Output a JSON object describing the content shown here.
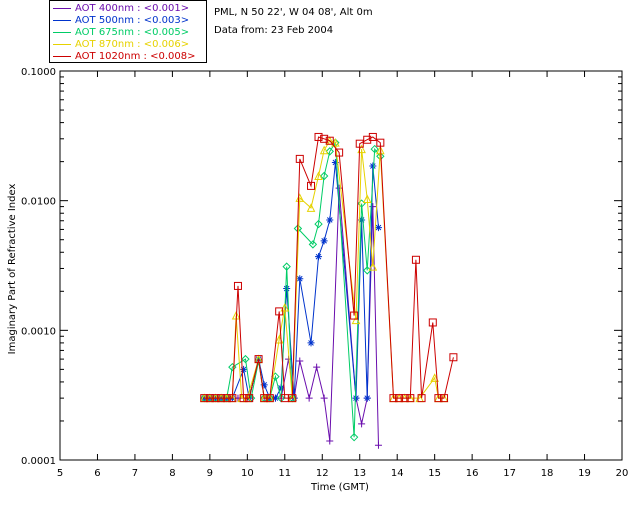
{
  "header": {
    "site": "PML, N 50 22', W 04 08', Alt 0m",
    "date": "Data from: 23 Feb 2004"
  },
  "legend": [
    {
      "label": "AOT  400nm : <0.001>",
      "color": "#6a0dad"
    },
    {
      "label": "AOT  500nm : <0.003>",
      "color": "#0033cc"
    },
    {
      "label": "AOT  675nm : <0.005>",
      "color": "#00cc66"
    },
    {
      "label": "AOT  870nm : <0.006>",
      "color": "#e6d200"
    },
    {
      "label": "AOT 1020nm : <0.008>",
      "color": "#cc0000"
    }
  ],
  "chart_data": {
    "type": "line",
    "xlabel": "Time (GMT)",
    "ylabel": "Imaginary Part of Refractive Index",
    "xlim": [
      5,
      20
    ],
    "ylim": [
      0.0001,
      0.1
    ],
    "yscale": "log",
    "xticks": [
      "5",
      "6",
      "7",
      "8",
      "9",
      "10",
      "11",
      "12",
      "13",
      "14",
      "15",
      "16",
      "17",
      "18",
      "19",
      "20"
    ],
    "yticks": [
      {
        "value": 0.0001,
        "label": "0.0001"
      },
      {
        "value": 0.001,
        "label": "0.0010"
      },
      {
        "value": 0.01,
        "label": "0.0100"
      },
      {
        "value": 0.1,
        "label": "0.1000"
      }
    ],
    "series": [
      {
        "name": "AOT 400nm",
        "color": "#6a0dad",
        "marker": "plus",
        "points": [
          [
            8.85,
            0.0003
          ],
          [
            9.0,
            0.0003
          ],
          [
            9.15,
            0.0003
          ],
          [
            9.3,
            0.0003
          ],
          [
            9.45,
            0.0003
          ],
          [
            9.6,
            0.0003
          ],
          [
            9.75,
            0.0003
          ],
          [
            9.9,
            0.0003
          ],
          [
            10.05,
            0.0003
          ],
          [
            10.3,
            0.0006
          ],
          [
            10.45,
            0.0003
          ],
          [
            10.6,
            0.0003
          ],
          [
            10.75,
            0.0003
          ],
          [
            10.9,
            0.0003
          ],
          [
            11.1,
            0.0006
          ],
          [
            11.25,
            0.0003
          ],
          [
            11.4,
            0.00058
          ],
          [
            11.65,
            0.0003
          ],
          [
            11.85,
            0.00052
          ],
          [
            12.05,
            0.0003
          ],
          [
            12.2,
            0.00014
          ],
          [
            12.45,
            0.0125
          ],
          [
            12.9,
            0.0003
          ],
          [
            13.05,
            0.00019
          ],
          [
            13.2,
            0.0003
          ],
          [
            13.35,
            0.009
          ],
          [
            13.5,
            0.00013
          ]
        ]
      },
      {
        "name": "AOT 500nm",
        "color": "#0033cc",
        "marker": "star",
        "points": [
          [
            8.85,
            0.0003
          ],
          [
            9.0,
            0.0003
          ],
          [
            9.15,
            0.0003
          ],
          [
            9.3,
            0.0003
          ],
          [
            9.45,
            0.0003
          ],
          [
            9.6,
            0.0003
          ],
          [
            9.9,
            0.0005
          ],
          [
            10.05,
            0.0003
          ],
          [
            10.3,
            0.0006
          ],
          [
            10.45,
            0.00038
          ],
          [
            10.6,
            0.0003
          ],
          [
            10.75,
            0.0003
          ],
          [
            10.9,
            0.00036
          ],
          [
            11.05,
            0.0021
          ],
          [
            11.25,
            0.0003
          ],
          [
            11.4,
            0.0025
          ],
          [
            11.7,
            0.0008
          ],
          [
            11.9,
            0.0037
          ],
          [
            12.05,
            0.0049
          ],
          [
            12.2,
            0.0071
          ],
          [
            12.35,
            0.0197
          ],
          [
            12.9,
            0.0003
          ],
          [
            13.05,
            0.0071
          ],
          [
            13.2,
            0.0003
          ],
          [
            13.35,
            0.0185
          ],
          [
            13.5,
            0.0062
          ]
        ]
      },
      {
        "name": "AOT 675nm",
        "color": "#00cc66",
        "marker": "diamond",
        "points": [
          [
            8.85,
            0.0003
          ],
          [
            9.0,
            0.0003
          ],
          [
            9.15,
            0.0003
          ],
          [
            9.3,
            0.0003
          ],
          [
            9.45,
            0.0003
          ],
          [
            9.6,
            0.00052
          ],
          [
            9.95,
            0.0006
          ],
          [
            10.1,
            0.0003
          ],
          [
            10.3,
            0.00058
          ],
          [
            10.45,
            0.0003
          ],
          [
            10.6,
            0.0003
          ],
          [
            10.75,
            0.00044
          ],
          [
            10.9,
            0.0003
          ],
          [
            11.05,
            0.0031
          ],
          [
            11.2,
            0.0003
          ],
          [
            11.35,
            0.0061
          ],
          [
            11.75,
            0.0046
          ],
          [
            11.9,
            0.0066
          ],
          [
            12.05,
            0.0155
          ],
          [
            12.2,
            0.024
          ],
          [
            12.35,
            0.028
          ],
          [
            12.85,
            0.00015
          ],
          [
            13.05,
            0.0095
          ],
          [
            13.2,
            0.0029
          ],
          [
            13.4,
            0.025
          ],
          [
            13.55,
            0.022
          ]
        ]
      },
      {
        "name": "AOT 870nm",
        "color": "#e6d200",
        "marker": "triangle",
        "points": [
          [
            8.85,
            0.0003
          ],
          [
            9.0,
            0.0003
          ],
          [
            9.15,
            0.0003
          ],
          [
            9.3,
            0.0003
          ],
          [
            9.45,
            0.0003
          ],
          [
            9.6,
            0.0003
          ],
          [
            9.7,
            0.0013
          ],
          [
            9.85,
            0.0003
          ],
          [
            10.0,
            0.0003
          ],
          [
            10.3,
            0.0006
          ],
          [
            10.45,
            0.0003
          ],
          [
            10.6,
            0.0003
          ],
          [
            10.85,
            0.00085
          ],
          [
            11.0,
            0.0015
          ],
          [
            11.2,
            0.0003
          ],
          [
            11.4,
            0.0105
          ],
          [
            11.7,
            0.0088
          ],
          [
            11.9,
            0.0155
          ],
          [
            12.05,
            0.0245
          ],
          [
            12.2,
            0.029
          ],
          [
            12.35,
            0.028
          ],
          [
            12.9,
            0.0012
          ],
          [
            13.05,
            0.025
          ],
          [
            13.2,
            0.0103
          ],
          [
            13.35,
            0.0031
          ],
          [
            13.55,
            0.0245
          ],
          [
            13.9,
            0.0003
          ],
          [
            14.05,
            0.0003
          ],
          [
            14.2,
            0.0003
          ],
          [
            14.35,
            0.0003
          ],
          [
            14.6,
            0.0003
          ],
          [
            15.0,
            0.00043
          ],
          [
            15.1,
            0.0003
          ],
          [
            15.25,
            0.0003
          ]
        ]
      },
      {
        "name": "AOT 1020nm",
        "color": "#cc0000",
        "marker": "square",
        "points": [
          [
            8.85,
            0.0003
          ],
          [
            9.0,
            0.0003
          ],
          [
            9.15,
            0.0003
          ],
          [
            9.3,
            0.0003
          ],
          [
            9.45,
            0.0003
          ],
          [
            9.6,
            0.0003
          ],
          [
            9.75,
            0.0022
          ],
          [
            9.9,
            0.0003
          ],
          [
            10.05,
            0.0003
          ],
          [
            10.3,
            0.0006
          ],
          [
            10.45,
            0.0003
          ],
          [
            10.6,
            0.0003
          ],
          [
            10.85,
            0.0014
          ],
          [
            11.0,
            0.0003
          ],
          [
            11.2,
            0.0003
          ],
          [
            11.4,
            0.021
          ],
          [
            11.7,
            0.013
          ],
          [
            11.9,
            0.031
          ],
          [
            12.05,
            0.03
          ],
          [
            12.2,
            0.029
          ],
          [
            12.45,
            0.0235
          ],
          [
            12.85,
            0.0013
          ],
          [
            13.0,
            0.0275
          ],
          [
            13.2,
            0.0295
          ],
          [
            13.35,
            0.031
          ],
          [
            13.55,
            0.028
          ],
          [
            13.9,
            0.0003
          ],
          [
            14.05,
            0.0003
          ],
          [
            14.2,
            0.0003
          ],
          [
            14.35,
            0.0003
          ],
          [
            14.5,
            0.0035
          ],
          [
            14.65,
            0.0003
          ],
          [
            14.95,
            0.00115
          ],
          [
            15.1,
            0.0003
          ],
          [
            15.25,
            0.0003
          ],
          [
            15.5,
            0.00062
          ]
        ]
      }
    ]
  }
}
